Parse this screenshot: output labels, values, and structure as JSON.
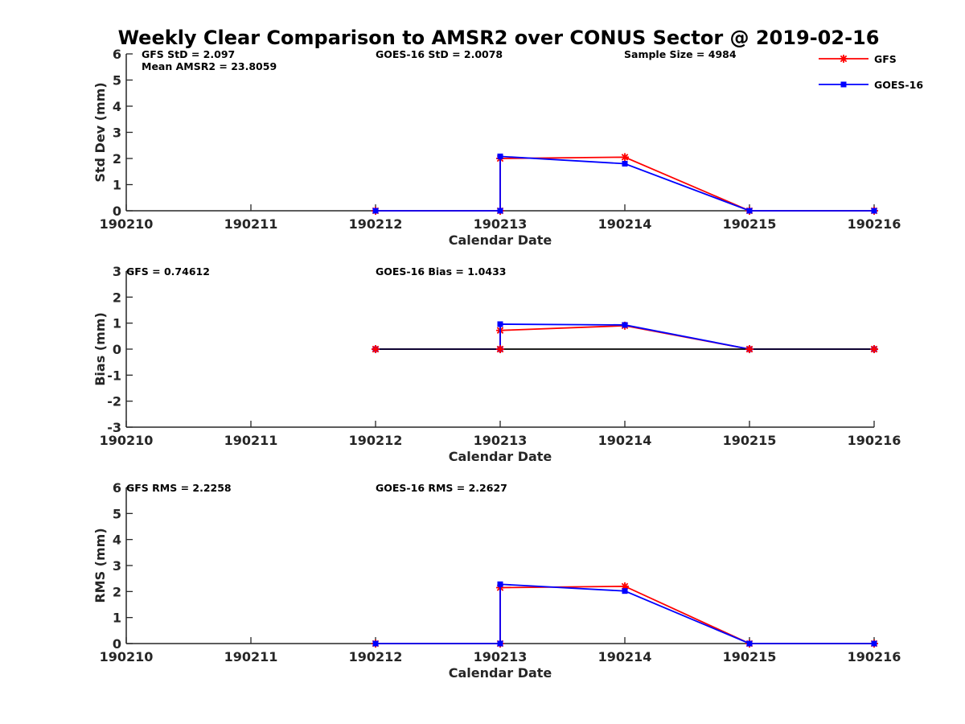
{
  "title": "Weekly Clear Comparison to AMSR2 over CONUS Sector @ 2019-02-16",
  "legend": {
    "entries": [
      {
        "label": "GFS",
        "color": "#ff0000",
        "marker": "asterisk"
      },
      {
        "label": "GOES-16",
        "color": "#0000ff",
        "marker": "square"
      }
    ],
    "placement": "top-right"
  },
  "chart_data": [
    {
      "type": "line",
      "xlabel": "Calendar Date",
      "ylabel": "Std Dev (mm)",
      "categories": [
        "190210",
        "190211",
        "190212",
        "190213",
        "190214",
        "190215",
        "190216"
      ],
      "ylim": [
        0,
        6
      ],
      "yticks": [
        "0",
        "1",
        "2",
        "3",
        "4",
        "5",
        "6"
      ],
      "annotations": [
        {
          "text": "GFS StD = 2.097",
          "pos": "top-left"
        },
        {
          "text": "Mean AMSR2 = 23.8059",
          "pos": "top-left-2"
        },
        {
          "text": "GOES-16 StD = 2.0078",
          "pos": "top-center"
        },
        {
          "text": "Sample Size = 4984",
          "pos": "top-right"
        }
      ],
      "zero_line": false,
      "series": [
        {
          "name": "GFS",
          "color": "#ff0000",
          "points": [
            [
              2,
              0
            ],
            [
              3,
              0
            ],
            [
              3,
              2.0
            ],
            [
              4,
              2.05
            ],
            [
              5,
              0
            ],
            [
              6,
              0
            ]
          ]
        },
        {
          "name": "GOES-16",
          "color": "#0000ff",
          "points": [
            [
              2,
              0
            ],
            [
              3,
              0
            ],
            [
              3,
              2.08
            ],
            [
              4,
              1.8
            ],
            [
              5,
              0
            ],
            [
              6,
              0
            ]
          ]
        }
      ]
    },
    {
      "type": "line",
      "xlabel": "Calendar Date",
      "ylabel": "Bias (mm)",
      "categories": [
        "190210",
        "190211",
        "190212",
        "190213",
        "190214",
        "190215",
        "190216"
      ],
      "ylim": [
        -3,
        3
      ],
      "yticks": [
        "-3",
        "-2",
        "-1",
        "0",
        "1",
        "2",
        "3"
      ],
      "annotations": [
        {
          "text": "GFS = 0.74612",
          "pos": "top-left"
        },
        {
          "text": "GOES-16 Bias  = 1.0433",
          "pos": "top-center"
        }
      ],
      "zero_line": true,
      "series": [
        {
          "name": "GFS",
          "color": "#ff0000",
          "points": [
            [
              2,
              0
            ],
            [
              3,
              0
            ],
            [
              3,
              0.72
            ],
            [
              4,
              0.9
            ],
            [
              5,
              0
            ],
            [
              6,
              0
            ]
          ]
        },
        {
          "name": "GOES-16",
          "color": "#0000ff",
          "points": [
            [
              2,
              0
            ],
            [
              3,
              0
            ],
            [
              3,
              0.96
            ],
            [
              4,
              0.93
            ],
            [
              5,
              0
            ],
            [
              6,
              0
            ]
          ]
        }
      ]
    },
    {
      "type": "line",
      "xlabel": "Calendar Date",
      "ylabel": "RMS (mm)",
      "categories": [
        "190210",
        "190211",
        "190212",
        "190213",
        "190214",
        "190215",
        "190216"
      ],
      "ylim": [
        0,
        6
      ],
      "yticks": [
        "0",
        "1",
        "2",
        "3",
        "4",
        "5",
        "6"
      ],
      "annotations": [
        {
          "text": "GFS RMS = 2.2258",
          "pos": "top-left"
        },
        {
          "text": "GOES-16 RMS = 2.2627",
          "pos": "top-center"
        }
      ],
      "zero_line": false,
      "series": [
        {
          "name": "GFS",
          "color": "#ff0000",
          "points": [
            [
              2,
              0
            ],
            [
              3,
              0
            ],
            [
              3,
              2.15
            ],
            [
              4,
              2.2
            ],
            [
              5,
              0
            ],
            [
              6,
              0
            ]
          ]
        },
        {
          "name": "GOES-16",
          "color": "#0000ff",
          "points": [
            [
              2,
              0
            ],
            [
              3,
              0
            ],
            [
              3,
              2.28
            ],
            [
              4,
              2.02
            ],
            [
              5,
              0
            ],
            [
              6,
              0
            ]
          ]
        }
      ]
    }
  ]
}
